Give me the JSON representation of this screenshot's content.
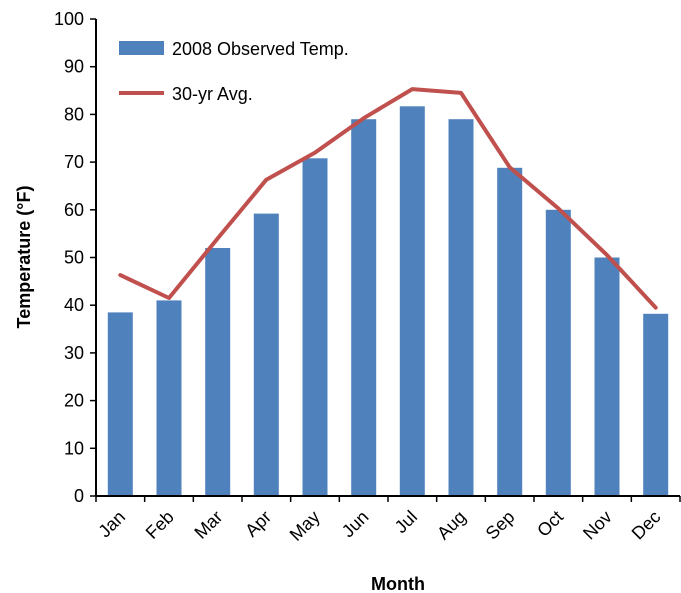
{
  "chart_data": {
    "type": "bar",
    "categories": [
      "Jan",
      "Feb",
      "Mar",
      "Apr",
      "May",
      "Jun",
      "Jul",
      "Aug",
      "Sep",
      "Oct",
      "Nov",
      "Dec"
    ],
    "series": [
      {
        "name": "2008 Observed Temp.",
        "type": "bar",
        "color": "#4F81BD",
        "values": [
          38.5,
          41,
          52,
          59.2,
          70.8,
          79,
          81.7,
          79,
          68.8,
          60,
          50,
          38.2
        ]
      },
      {
        "name": "30-yr Avg.",
        "type": "line",
        "color": "#C0504D",
        "values": [
          46.3,
          41.5,
          54,
          66.3,
          72,
          79.2,
          85.3,
          84.5,
          68.9,
          60.3,
          50.5,
          39.5
        ]
      }
    ],
    "xlabel": "Month",
    "ylabel": "Temperature (°F)",
    "ylim": [
      0,
      100
    ],
    "yticks": [
      0,
      10,
      20,
      30,
      40,
      50,
      60,
      70,
      80,
      90,
      100
    ],
    "grid": false,
    "legend_position": "top-left"
  }
}
